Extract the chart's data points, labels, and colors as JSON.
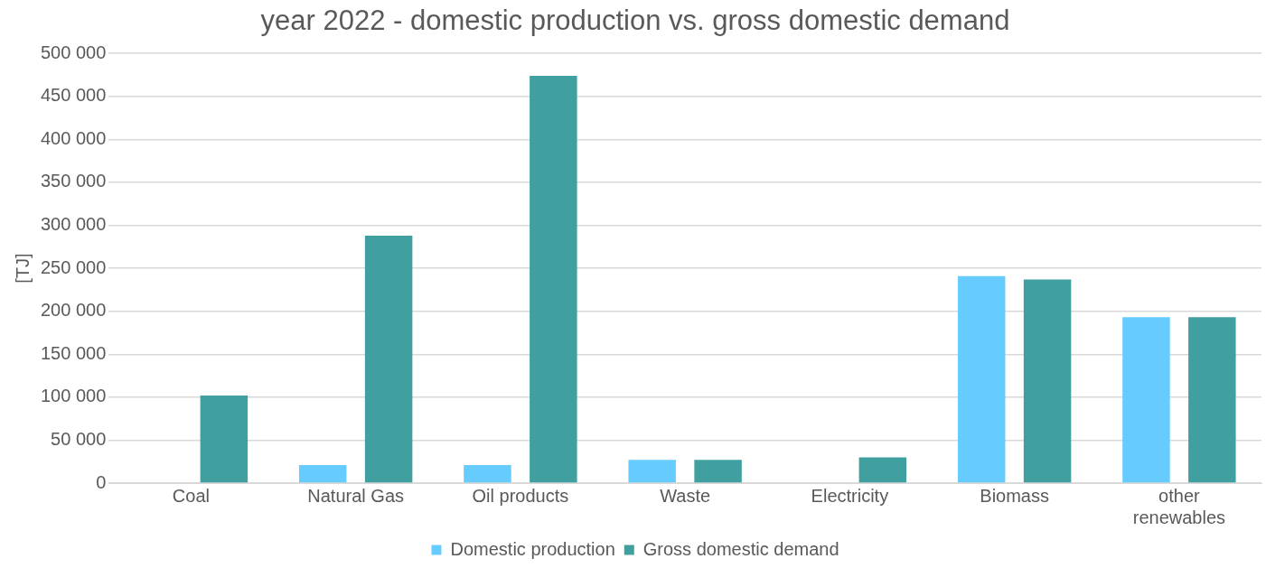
{
  "chart_data": {
    "type": "bar",
    "title": "year 2022 - domestic production vs. gross domestic demand",
    "ylabel": "[TJ]",
    "categories": [
      "Coal",
      "Natural Gas",
      "Oil products",
      "Waste",
      "Electricity",
      "Biomass",
      "other renewables"
    ],
    "series": [
      {
        "name": "Domestic production",
        "color": "#66ccff",
        "values": [
          0,
          21000,
          21000,
          27000,
          0,
          241000,
          193000
        ]
      },
      {
        "name": "Gross domestic demand",
        "color": "#40a0a0",
        "values": [
          102000,
          288000,
          474000,
          27000,
          30000,
          237000,
          193000
        ]
      }
    ],
    "ylim": [
      0,
      500000
    ],
    "yticks": [
      {
        "value": 0,
        "label": "0"
      },
      {
        "value": 50000,
        "label": "50 000"
      },
      {
        "value": 100000,
        "label": "100 000"
      },
      {
        "value": 150000,
        "label": "150 000"
      },
      {
        "value": 200000,
        "label": "200 000"
      },
      {
        "value": 250000,
        "label": "250 000"
      },
      {
        "value": 300000,
        "label": "300 000"
      },
      {
        "value": 350000,
        "label": "350 000"
      },
      {
        "value": 400000,
        "label": "400 000"
      },
      {
        "value": 450000,
        "label": "450 000"
      },
      {
        "value": 500000,
        "label": "500 000"
      }
    ],
    "grid": "y",
    "legend": "bottom"
  }
}
